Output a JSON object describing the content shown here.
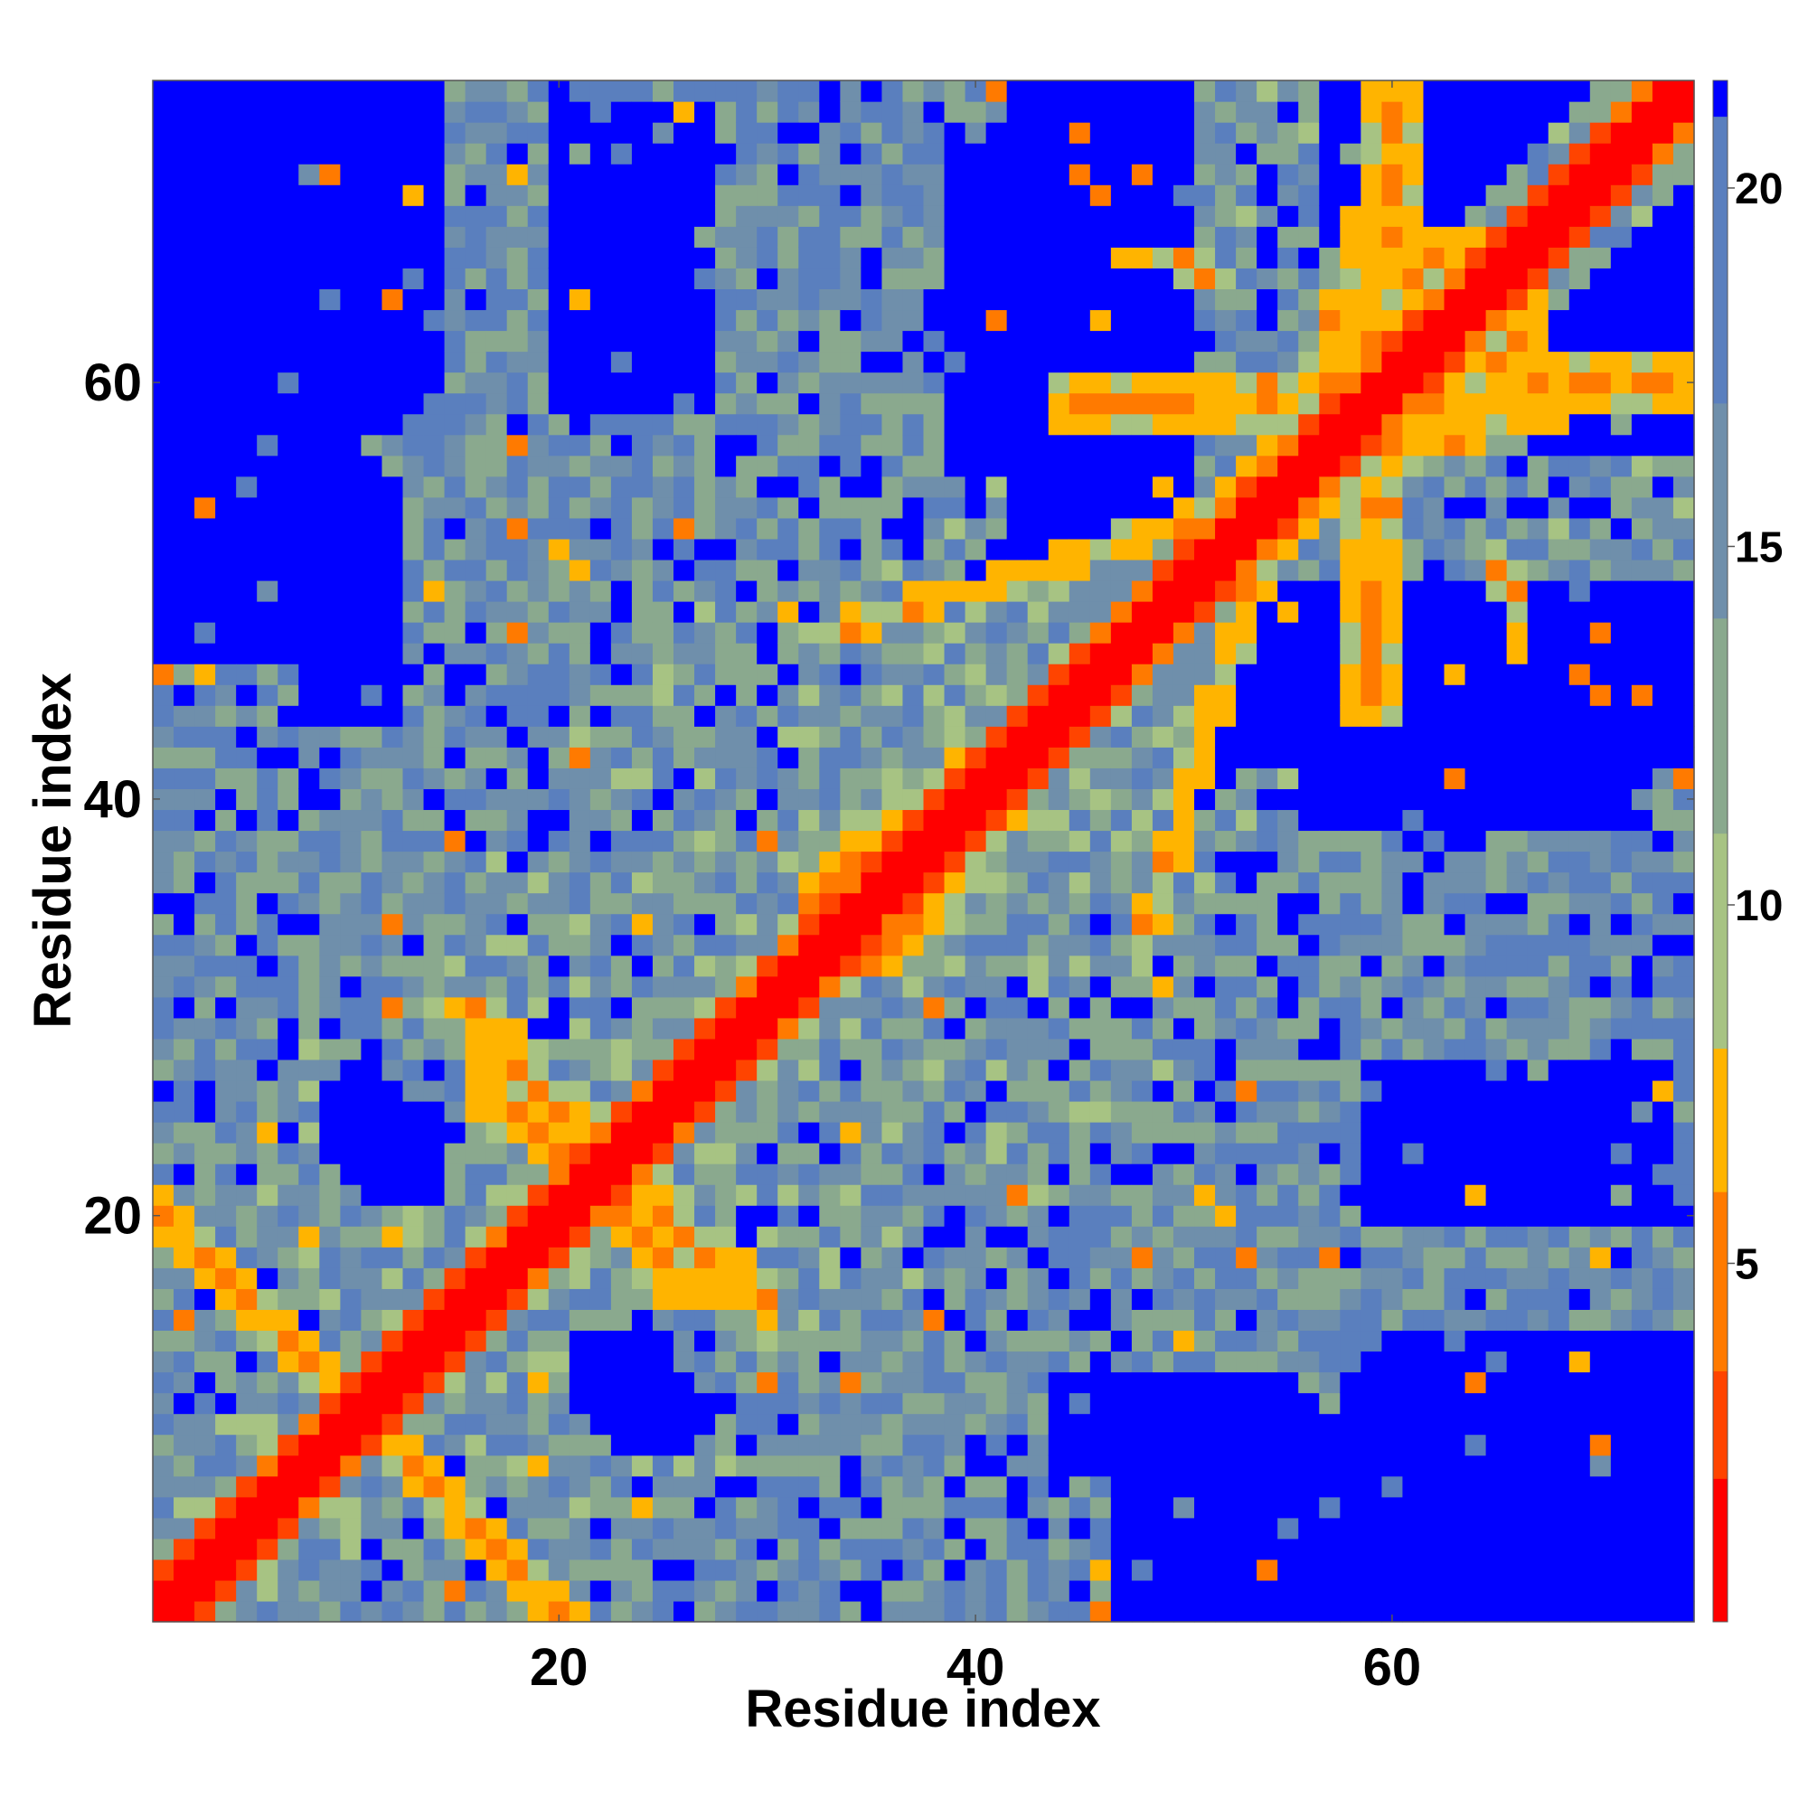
{
  "chart_data": {
    "type": "heatmap",
    "title": "",
    "xlabel": "Residue index",
    "ylabel": "Residue index",
    "n_residues": 74,
    "xlim": [
      0.5,
      74.5
    ],
    "ylim": [
      0.5,
      74.5
    ],
    "x_ticks": [
      20,
      40,
      60
    ],
    "y_ticks": [
      20,
      40,
      60
    ],
    "origin": "bottom-left",
    "grid": false,
    "legend": "none",
    "colorbar": {
      "position": "right",
      "range": [
        0,
        21.5
      ],
      "ticks": [
        5,
        10,
        15,
        20
      ],
      "colors": [
        "#ff0000",
        "#ff4400",
        "#ff7a00",
        "#ffb400",
        "#a7c383",
        "#8aa98e",
        "#6f8fab",
        "#5a7fbe",
        "#0000ff"
      ],
      "bounds": [
        0,
        2,
        3.5,
        6,
        8,
        11,
        14,
        17,
        21,
        21.5
      ]
    },
    "values_description": "Symmetric residue-residue distance map (Å). Values below are a row-major 74x74 matrix generated from structure parameters: diagonal=0, near-diagonal increments, with large-distance (>21) blue blocks.",
    "blue_blocks": [
      [
        1,
        14,
        59,
        74
      ],
      [
        20,
        27,
        59,
        73
      ],
      [
        42,
        50,
        52,
        74
      ],
      [
        57,
        69,
        67,
        74
      ],
      [
        42,
        50,
        53,
        67
      ],
      [
        59,
        68,
        70,
        74
      ],
      [
        8,
        12,
        44,
        53
      ],
      [
        56,
        72,
        39,
        49
      ],
      [
        61,
        69,
        6,
        12
      ],
      [
        66,
        74,
        1,
        9
      ],
      [
        47,
        62,
        1,
        11
      ],
      [
        9,
        12,
        23,
        27
      ],
      [
        21,
        25,
        10,
        14
      ],
      [
        50,
        57,
        1,
        4
      ],
      [
        60,
        73,
        1,
        4
      ],
      [
        48,
        55,
        8,
        12
      ]
    ],
    "contact_bands": [
      [
        [
          1,
          20
        ],
        [
          20,
          1
        ]
      ],
      [
        [
          16,
          30
        ],
        [
          26,
          16
        ]
      ],
      [
        [
          33,
          48
        ],
        [
          72,
          60
        ]
      ],
      [
        [
          49,
          66
        ],
        [
          51,
          65
        ]
      ],
      [
        [
          60,
          74
        ],
        [
          59,
          44
        ]
      ],
      [
        [
          63,
          67
        ],
        [
          35,
          32
        ]
      ]
    ]
  }
}
